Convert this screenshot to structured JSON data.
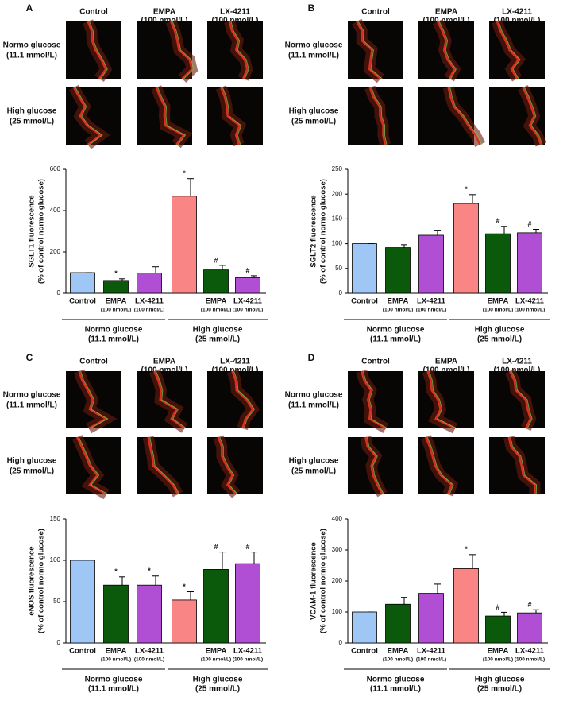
{
  "chart_data": [
    {
      "type": "bar",
      "panel": "A",
      "image_columns": [
        [
          "Control"
        ],
        [
          "EMPA",
          "(100 nmol/L)"
        ],
        [
          "LX-4211",
          "(100 nmol/L)"
        ]
      ],
      "image_rows": [
        [
          "Normo glucose",
          "(11.1 mmol/L)"
        ],
        [
          "High glucose",
          "(25 mmol/L)"
        ]
      ],
      "ylabel": "SGLT1 fluorescence",
      "ylabel_sub": "(% of control normo glucose)",
      "categories": [
        "Control",
        "EMPA",
        "LX-4211",
        null,
        "EMPA",
        "LX-4211"
      ],
      "category_notes": [
        null,
        "(100 nmol/L)",
        "(100 nmol/L)",
        null,
        "(100 nmol/L)",
        "(100 nmol/L)"
      ],
      "groups": [
        [
          "Normo glucose",
          "(11.1 mmol/L)"
        ],
        [
          "High glucose",
          "(25 mmol/L)"
        ]
      ],
      "values": [
        100,
        62,
        98,
        470,
        113,
        75
      ],
      "errors": [
        0,
        8,
        30,
        85,
        22,
        10
      ],
      "annotations": [
        null,
        "*",
        null,
        "*",
        "#",
        "#"
      ],
      "colors": [
        "#9fc7f5",
        "#0b5a0b",
        "#b04fd3",
        "#f98585",
        "#0b5a0b",
        "#b04fd3"
      ],
      "ylim": [
        0,
        600
      ],
      "yticks": [
        0,
        200,
        400,
        600
      ]
    },
    {
      "type": "bar",
      "panel": "B",
      "image_columns": [
        [
          "Control"
        ],
        [
          "EMPA",
          "(100 nmol/L)"
        ],
        [
          "LX-4211",
          "(100 nmol/L)"
        ]
      ],
      "image_rows": [
        [
          "Normo glucose",
          "(11.1 mmol/L)"
        ],
        [
          "High glucose",
          "(25 mmol/L)"
        ]
      ],
      "ylabel": "SGLT2 fluorescence",
      "ylabel_sub": "(% of control normo glucose)",
      "categories": [
        "Control",
        "EMPA",
        "LX-4211",
        null,
        "EMPA",
        "LX-4211"
      ],
      "category_notes": [
        null,
        "(100 nmol/L)",
        "(100 nmol/L)",
        null,
        "(100 nmol/L)",
        "(100 nmol/L)"
      ],
      "groups": [
        [
          "Normo glucose",
          "(11.1 mmol/L)"
        ],
        [
          "High glucose",
          "(25 mmol/L)"
        ]
      ],
      "values": [
        100,
        92,
        117,
        181,
        120,
        122
      ],
      "errors": [
        0,
        6,
        9,
        18,
        15,
        7
      ],
      "annotations": [
        null,
        null,
        null,
        "*",
        "#",
        "#"
      ],
      "colors": [
        "#9fc7f5",
        "#0b5a0b",
        "#b04fd3",
        "#f98585",
        "#0b5a0b",
        "#b04fd3"
      ],
      "ylim": [
        0,
        250
      ],
      "yticks": [
        0,
        50,
        100,
        150,
        200,
        250
      ]
    },
    {
      "type": "bar",
      "panel": "C",
      "image_columns": [
        [
          "Control"
        ],
        [
          "EMPA",
          "(100 nmol/L)"
        ],
        [
          "LX-4211",
          "(100 nmol/L)"
        ]
      ],
      "image_rows": [
        [
          "Normo glucose",
          "(11.1 mmol/L)"
        ],
        [
          "High glucose",
          "(25 mmol/L)"
        ]
      ],
      "ylabel": "eNOS fluorescence",
      "ylabel_sub": "(% of control normo glucose)",
      "categories": [
        "Control",
        "EMPA",
        "LX-4211",
        null,
        "EMPA",
        "LX-4211"
      ],
      "category_notes": [
        null,
        "(100 nmol/L)",
        "(100 nmol/L)",
        null,
        "(100 nmol/L)",
        "(100 nmol/L)"
      ],
      "groups": [
        [
          "Normo glucose",
          "(11.1 mmol/L)"
        ],
        [
          "High glucose",
          "(25 mmol/L)"
        ]
      ],
      "values": [
        100,
        70,
        70,
        52,
        89,
        96
      ],
      "errors": [
        0,
        10,
        11,
        10,
        21,
        14
      ],
      "annotations": [
        null,
        "*",
        "*",
        "*",
        "#",
        "#"
      ],
      "colors": [
        "#9fc7f5",
        "#0b5a0b",
        "#b04fd3",
        "#f98585",
        "#0b5a0b",
        "#b04fd3"
      ],
      "ylim": [
        0,
        150
      ],
      "yticks": [
        0,
        50,
        100,
        150
      ]
    },
    {
      "type": "bar",
      "panel": "D",
      "image_columns": [
        [
          "Control"
        ],
        [
          "EMPA",
          "(100 nmol/L)"
        ],
        [
          "LX-4211",
          "(100 nmol/L)"
        ]
      ],
      "image_rows": [
        [
          "Normo glucose",
          "(11.1 mmol/L)"
        ],
        [
          "High glucose",
          "(25 mmol/L)"
        ]
      ],
      "ylabel": "VCAM-1 fluorescence",
      "ylabel_sub": "(% of control normo glucose)",
      "categories": [
        "Control",
        "EMPA",
        "LX-4211",
        null,
        "EMPA",
        "LX-4211"
      ],
      "category_notes": [
        null,
        "(100 nmol/L)",
        "(100 nmol/L)",
        null,
        "(100 nmol/L)",
        "(100 nmol/L)"
      ],
      "groups": [
        [
          "Normo glucose",
          "(11.1 mmol/L)"
        ],
        [
          "High glucose",
          "(25 mmol/L)"
        ]
      ],
      "values": [
        100,
        125,
        160,
        240,
        87,
        97
      ],
      "errors": [
        0,
        22,
        30,
        45,
        12,
        10
      ],
      "annotations": [
        null,
        null,
        null,
        "*",
        "#",
        "#"
      ],
      "colors": [
        "#9fc7f5",
        "#0b5a0b",
        "#b04fd3",
        "#f98585",
        "#0b5a0b",
        "#b04fd3"
      ],
      "ylim": [
        0,
        400
      ],
      "yticks": [
        0,
        100,
        200,
        300,
        400
      ]
    }
  ]
}
